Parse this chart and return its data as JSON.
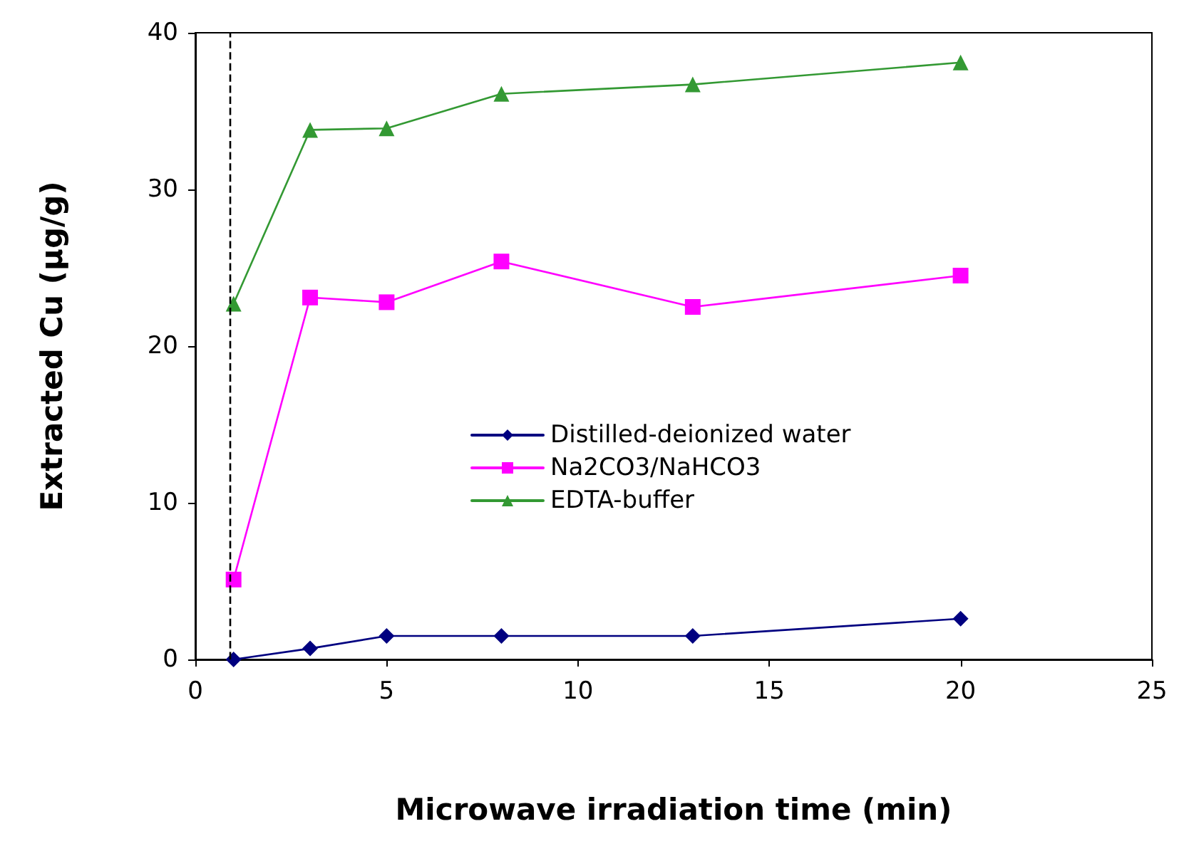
{
  "chart_data": {
    "type": "line",
    "xlabel": "Microwave irradiation time (min)",
    "ylabel": "Extracted Cu (µg/g)",
    "x": [
      1,
      3,
      5,
      8,
      13,
      20
    ],
    "series": [
      {
        "name": "Distilled-deionized water",
        "color": "#000080",
        "marker": "diamond",
        "values": [
          0,
          0.7,
          1.5,
          1.5,
          1.5,
          2.6
        ]
      },
      {
        "name": "Na2CO3/NaHCO3",
        "color": "#ff00ff",
        "marker": "square",
        "values": [
          5.1,
          23.1,
          22.8,
          25.4,
          22.5,
          24.5
        ]
      },
      {
        "name": "EDTA-buffer",
        "color": "#339933",
        "marker": "triangle",
        "values": [
          22.7,
          33.8,
          33.9,
          36.1,
          36.7,
          38.1
        ]
      }
    ],
    "xlim": [
      0,
      25
    ],
    "xticks": [
      0,
      5,
      10,
      15,
      20,
      25
    ],
    "ylim": [
      0,
      40
    ],
    "yticks": [
      0,
      10,
      20,
      30,
      40
    ],
    "grid": false,
    "legend": "center",
    "ref_lines": [
      {
        "axis": "x",
        "value": 0.9,
        "color": "#000000",
        "line_style": "dashed"
      }
    ]
  }
}
